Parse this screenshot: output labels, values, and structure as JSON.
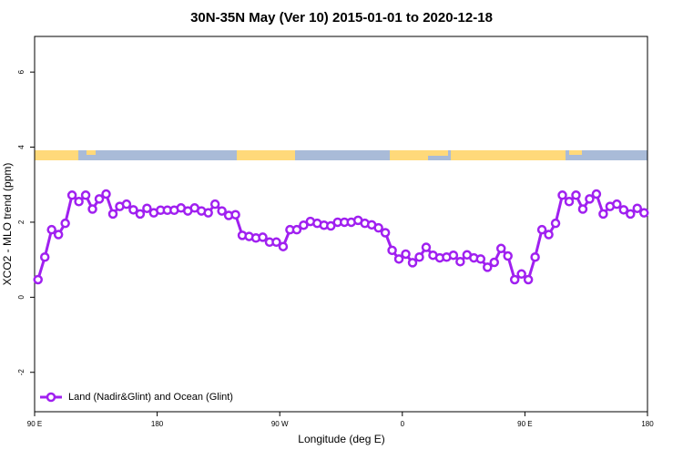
{
  "chart_data": {
    "type": "line",
    "title": "30N-35N May (Ver 10)   2015-01-01 to 2020-12-18",
    "x_label": "Longitude (deg E)",
    "y_label": "XCO2 - MLO trend (ppm)",
    "x": [
      92.5,
      97.5,
      102.5,
      107.5,
      112.5,
      117.5,
      122.5,
      127.5,
      132.5,
      137.5,
      142.5,
      147.5,
      152.5,
      157.5,
      162.5,
      167.5,
      172.5,
      177.5,
      182.5,
      187.5,
      192.5,
      197.5,
      202.5,
      207.5,
      212.5,
      217.5,
      222.5,
      227.5,
      232.5,
      237.5,
      242.5,
      247.5,
      252.5,
      257.5,
      262.5,
      267.5,
      272.5,
      277.5,
      282.5,
      287.5,
      292.5,
      297.5,
      302.5,
      307.5,
      312.5,
      317.5,
      322.5,
      327.5,
      332.5,
      337.5,
      342.5,
      347.5,
      352.5,
      357.5,
      362.5,
      367.5,
      372.5,
      377.5,
      382.5,
      387.5,
      392.5,
      397.5,
      402.5,
      407.5,
      412.5,
      417.5,
      422.5,
      427.5,
      432.5,
      437.5,
      442.5,
      447.5,
      452.5,
      457.5,
      462.5,
      467.5,
      472.5,
      477.5,
      482.5,
      487.5,
      492.5,
      497.5,
      502.5,
      507.5,
      512.5,
      517.5,
      522.5,
      527.5,
      532.5,
      537.5
    ],
    "series": [
      {
        "name": "Land (Nadir&Glint) and Ocean (Glint)",
        "color": "#a020f0",
        "values": [
          0.47,
          1.07,
          1.8,
          1.67,
          1.97,
          2.72,
          2.55,
          2.72,
          2.35,
          2.62,
          2.75,
          2.22,
          2.42,
          2.48,
          2.33,
          2.22,
          2.37,
          2.25,
          2.32,
          2.32,
          2.32,
          2.38,
          2.3,
          2.38,
          2.3,
          2.25,
          2.48,
          2.3,
          2.18,
          2.2,
          1.65,
          1.62,
          1.58,
          1.6,
          1.47,
          1.47,
          1.35,
          1.8,
          1.8,
          1.92,
          2.02,
          1.97,
          1.92,
          1.9,
          2.0,
          2.0,
          2.0,
          2.05,
          1.97,
          1.93,
          1.85,
          1.72,
          1.25,
          1.02,
          1.15,
          0.92,
          1.07,
          1.33,
          1.12,
          1.05,
          1.07,
          1.12,
          0.95,
          1.13,
          1.05,
          1.02,
          0.8,
          0.93,
          1.3,
          1.1,
          0.47,
          0.62,
          0.47,
          1.07,
          1.8,
          1.67,
          1.97,
          2.72,
          2.55,
          2.72,
          2.35,
          2.62,
          2.75,
          2.22,
          2.42,
          2.48,
          2.33,
          2.22,
          2.37,
          2.25
        ]
      }
    ],
    "xlim": [
      90,
      540
    ],
    "xticks": [
      {
        "value": 90,
        "label": "90 E"
      },
      180,
      {
        "value": 270,
        "label": "90 W"
      },
      {
        "value": 360,
        "label": "0"
      },
      {
        "value": 450,
        "label": "90 E"
      },
      {
        "value": 540,
        "label": "180"
      }
    ],
    "ylim": [
      -3.05,
      6.95
    ],
    "yticks": [
      -2,
      0,
      2,
      4,
      6
    ],
    "grid": false,
    "legend": "bottom-left"
  }
}
